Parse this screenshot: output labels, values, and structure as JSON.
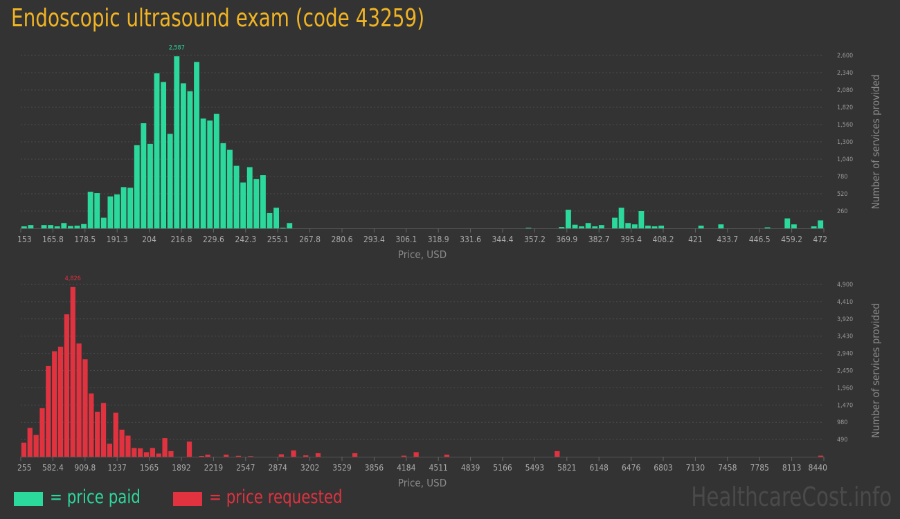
{
  "title": "Endoscopic ultrasound exam (code 43259)",
  "colors": {
    "paid": "#2bd99c",
    "requested": "#e0323f",
    "background": "#333333",
    "grid": "#4d4d4d",
    "title": "#f0b323"
  },
  "legend": {
    "paid_label": "= price paid",
    "requested_label": "= price requested"
  },
  "watermark": "HealthcareCost.info",
  "chart_data": [
    {
      "type": "bar",
      "series_name": "price paid",
      "xlabel": "Price, USD",
      "ylabel": "Number of services provided",
      "xlim": [
        153,
        472
      ],
      "ylim": [
        0,
        2600
      ],
      "grid": true,
      "x_ticks": [
        "153",
        "165.8",
        "178.5",
        "191.3",
        "204",
        "216.8",
        "229.6",
        "242.3",
        "255.1",
        "267.8",
        "280.6",
        "293.4",
        "306.1",
        "318.9",
        "331.6",
        "344.4",
        "357.2",
        "369.9",
        "382.7",
        "395.4",
        "408.2",
        "421",
        "433.7",
        "446.5",
        "459.2",
        "472"
      ],
      "y_ticks": [
        "260",
        "520",
        "780",
        "1,040",
        "1,300",
        "1,560",
        "1,820",
        "2,080",
        "2,340",
        "2,600"
      ],
      "peak_label": "2,587",
      "values": [
        30,
        50,
        0,
        50,
        50,
        30,
        80,
        35,
        40,
        65,
        550,
        530,
        160,
        480,
        510,
        620,
        610,
        1250,
        1580,
        1270,
        2330,
        2200,
        1420,
        2587,
        2180,
        2060,
        2500,
        1650,
        1620,
        1720,
        1280,
        1180,
        940,
        690,
        920,
        740,
        800,
        230,
        310,
        10,
        80,
        0,
        0,
        0,
        0,
        0,
        0,
        0,
        0,
        0,
        0,
        0,
        0,
        0,
        0,
        0,
        0,
        0,
        0,
        0,
        0,
        0,
        0,
        0,
        0,
        0,
        0,
        0,
        0,
        0,
        0,
        0,
        0,
        0,
        0,
        0,
        10,
        0,
        0,
        0,
        0,
        20,
        280,
        55,
        30,
        80,
        30,
        50,
        0,
        160,
        310,
        80,
        60,
        260,
        40,
        30,
        40,
        0,
        0,
        0,
        0,
        0,
        40,
        0,
        0,
        60,
        0,
        0,
        0,
        0,
        0,
        0,
        15,
        0,
        0,
        150,
        60,
        0,
        0,
        30,
        120
      ]
    },
    {
      "type": "bar",
      "series_name": "price requested",
      "xlabel": "Price, USD",
      "ylabel": "Number of services provided",
      "xlim": [
        255,
        8440
      ],
      "ylim": [
        0,
        4900
      ],
      "grid": true,
      "x_ticks": [
        "255",
        "582.4",
        "909.8",
        "1237",
        "1565",
        "1892",
        "2219",
        "2547",
        "2874",
        "3202",
        "3529",
        "3856",
        "4184",
        "4511",
        "4839",
        "5166",
        "5493",
        "5821",
        "6148",
        "6476",
        "6803",
        "7130",
        "7458",
        "7785",
        "8113",
        "8440"
      ],
      "y_ticks": [
        "490",
        "980",
        "1,470",
        "1,960",
        "2,450",
        "2,940",
        "3,430",
        "3,920",
        "4,410",
        "4,900"
      ],
      "peak_label": "4,826",
      "values": [
        400,
        820,
        620,
        1380,
        2580,
        3000,
        3130,
        4050,
        4826,
        3220,
        2770,
        1800,
        1280,
        1530,
        370,
        1250,
        770,
        600,
        250,
        240,
        130,
        250,
        90,
        530,
        160,
        0,
        0,
        430,
        0,
        20,
        60,
        0,
        0,
        60,
        0,
        25,
        0,
        15,
        0,
        0,
        0,
        0,
        70,
        0,
        180,
        0,
        40,
        0,
        100,
        0,
        0,
        0,
        0,
        0,
        100,
        0,
        0,
        0,
        0,
        0,
        0,
        0,
        30,
        0,
        130,
        0,
        0,
        0,
        0,
        60,
        0,
        0,
        0,
        0,
        0,
        0,
        0,
        0,
        0,
        0,
        0,
        0,
        0,
        0,
        0,
        0,
        0,
        160,
        0,
        0,
        0,
        0,
        0,
        0,
        0,
        0,
        0,
        0,
        0,
        0,
        0,
        0,
        0,
        0,
        0,
        0,
        0,
        0,
        0,
        0,
        0,
        0,
        0,
        0,
        0,
        0,
        0,
        0,
        0,
        0,
        0,
        0,
        0,
        0,
        0,
        0,
        0,
        0,
        0,
        0,
        30
      ]
    }
  ]
}
